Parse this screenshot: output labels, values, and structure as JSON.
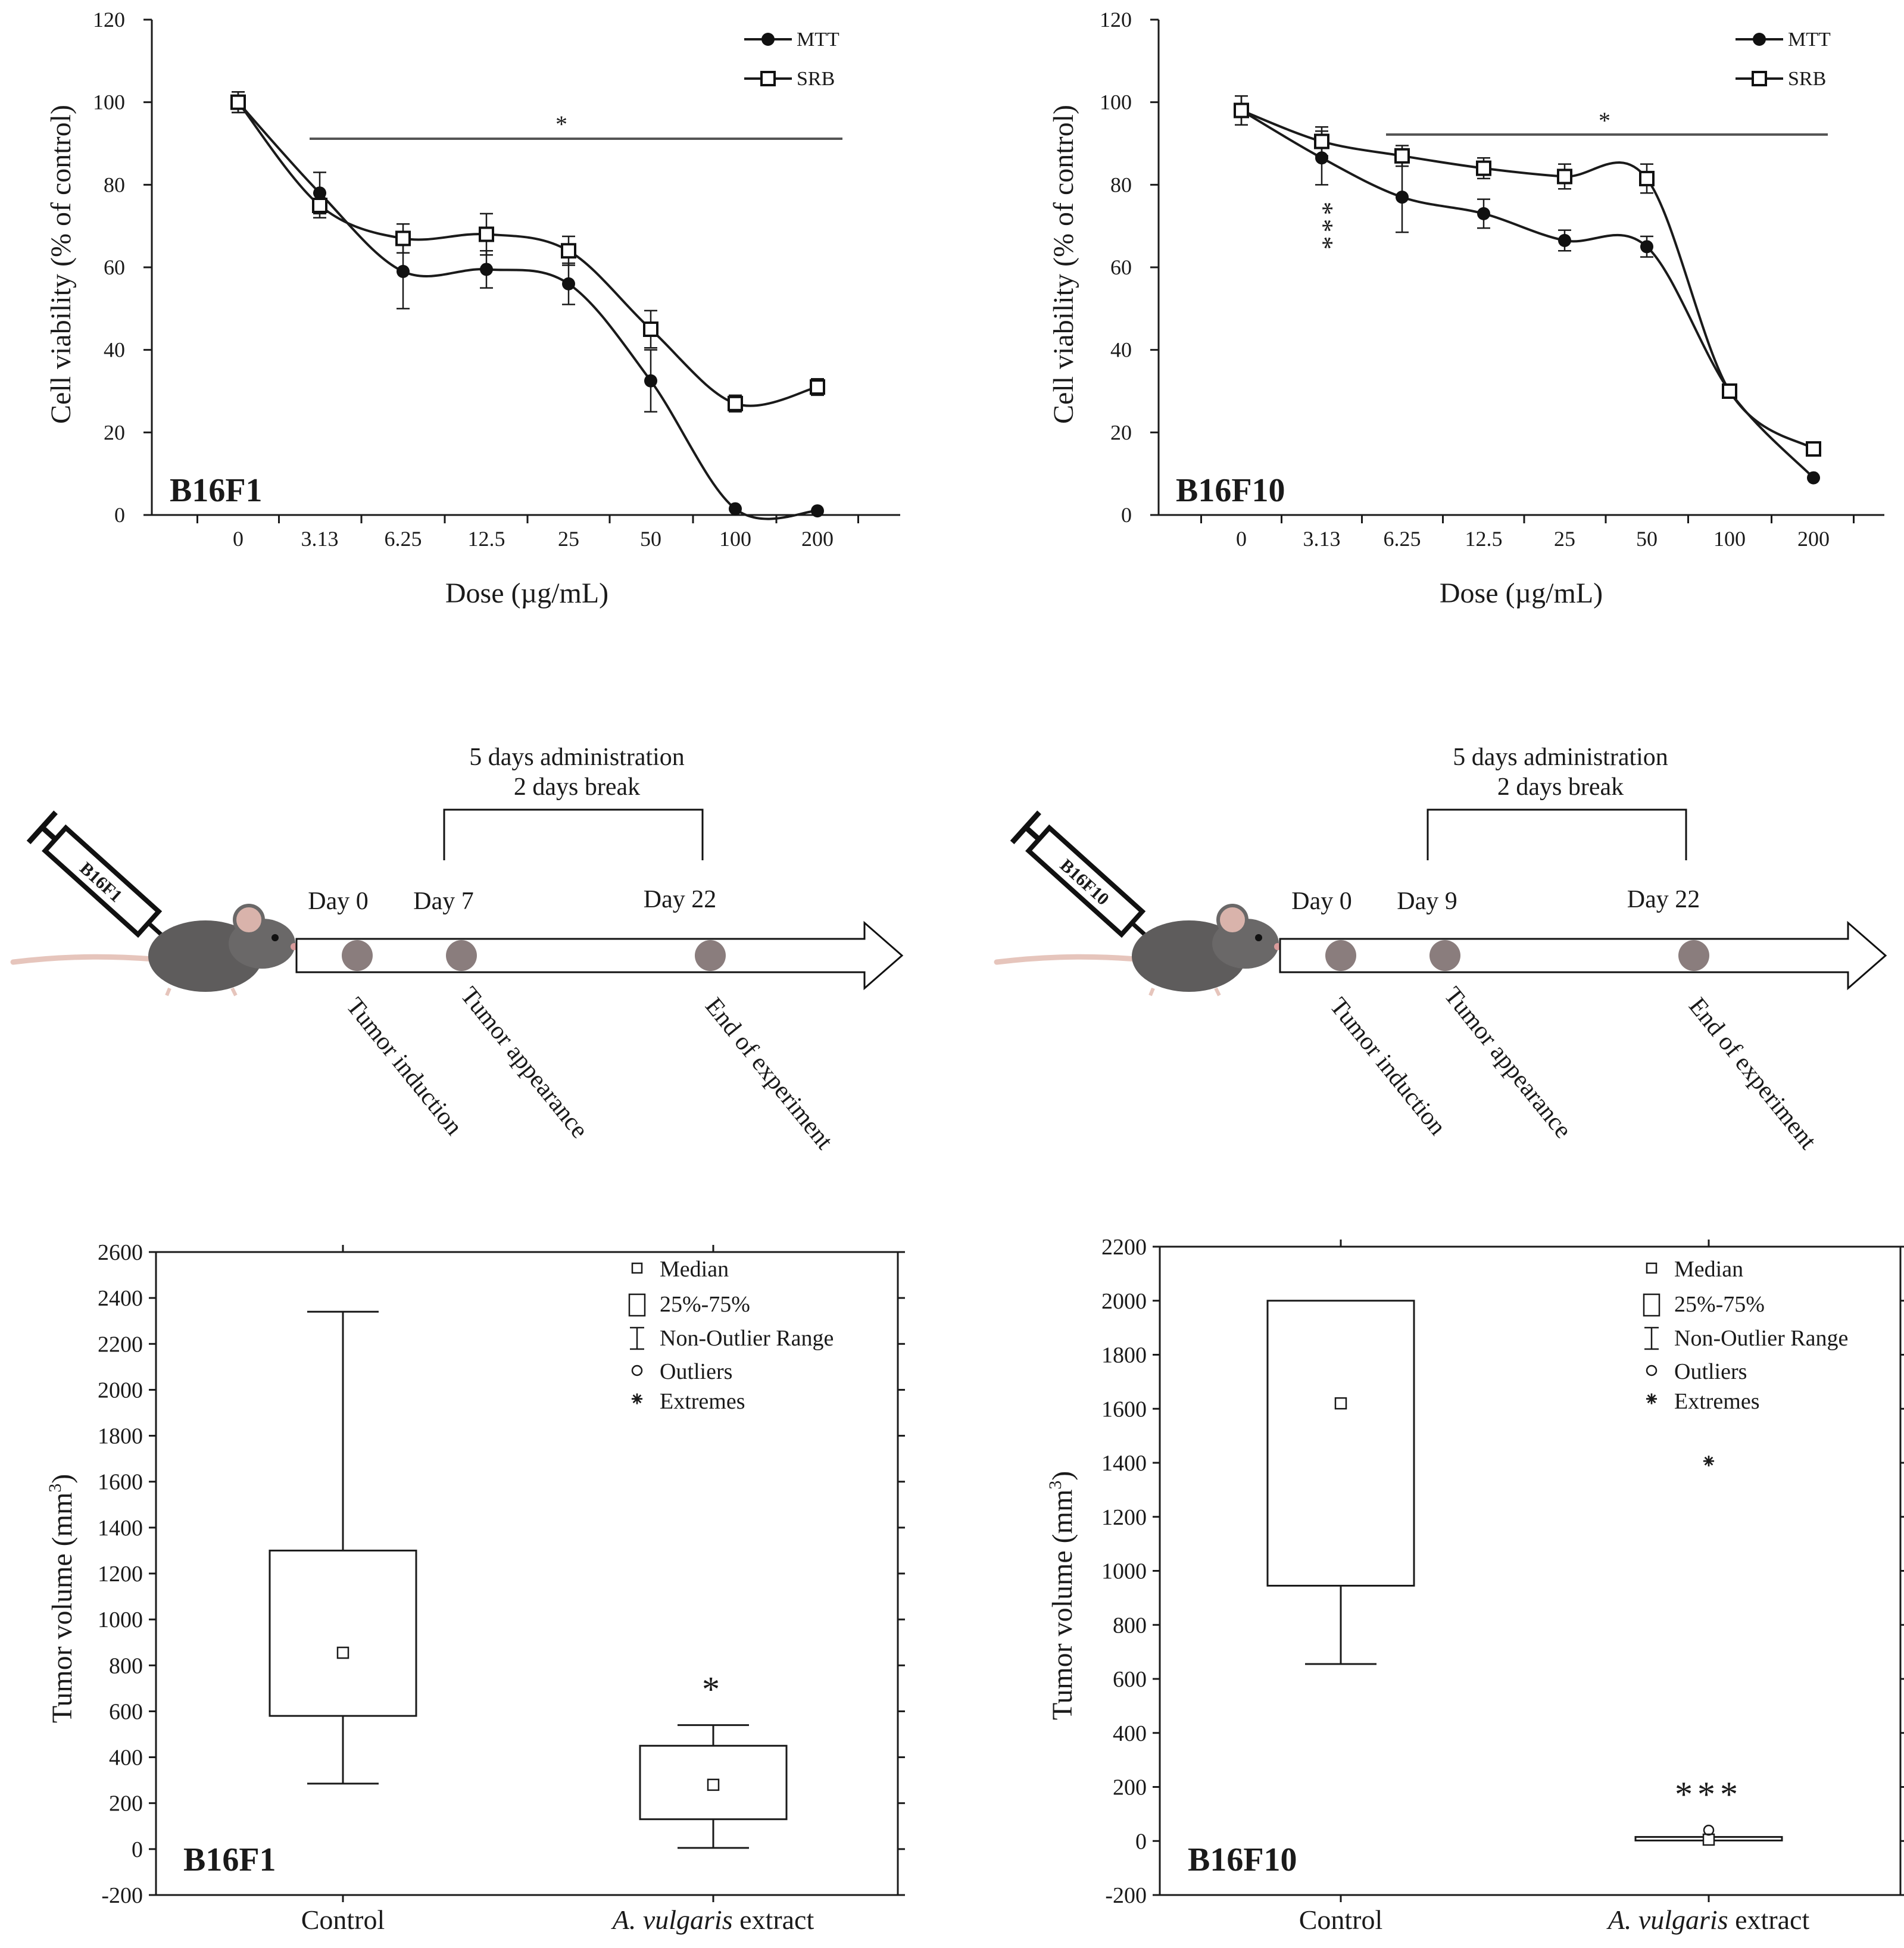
{
  "colors": {
    "ink": "#1a1a1a",
    "marker": "#8a7d7d",
    "mouse": "#5e5c5c",
    "tail": "#e6c5bc"
  },
  "line_charts": [
    {
      "cell_line": "B16F1",
      "xlabel": "Dose (µg/mL)",
      "ylabel": "Cell viability (% of control)",
      "significance": "*"
    },
    {
      "cell_line": "B16F10",
      "xlabel": "Dose (µg/mL)",
      "ylabel": "Cell viability (% of control)",
      "significance": "*",
      "extra_annotation": "***"
    }
  ],
  "timelines": [
    {
      "syringe_label": "B16F1",
      "bracket_line1": "5 days administration",
      "bracket_line2": "2 days break",
      "days": [
        "Day 0",
        "Day 7",
        "Day 22"
      ],
      "events": [
        "Tumor induction",
        "Tumor appearance",
        "End of experiment"
      ]
    },
    {
      "syringe_label": "B16F10",
      "bracket_line1": "5 days administration",
      "bracket_line2": "2 days break",
      "days": [
        "Day 0",
        "Day 9",
        "Day 22"
      ],
      "events": [
        "Tumor induction",
        "Tumor appearance",
        "End of experiment"
      ]
    }
  ],
  "box_charts": [
    {
      "cell_line": "B16F1",
      "significance": "*",
      "legend": [
        "Median",
        "25%-75%",
        "Non-Outlier Range",
        "Outliers",
        "Extremes"
      ]
    },
    {
      "cell_line": "B16F10",
      "significance": "***",
      "legend": [
        "Median",
        "25%-75%",
        "Non-Outlier Range",
        "Outliers",
        "Extremes"
      ]
    }
  ],
  "chart_data": [
    {
      "type": "line",
      "title": "B16F1",
      "xlabel": "Dose (µg/mL)",
      "ylabel": "Cell viability (% of control)",
      "categories": [
        "0",
        "3.13",
        "6.25",
        "12.5",
        "25",
        "50",
        "100",
        "200"
      ],
      "ylim": [
        0,
        120
      ],
      "yticks": [
        0,
        20,
        40,
        60,
        80,
        100,
        120
      ],
      "series": [
        {
          "name": "MTT",
          "marker": "filled-circle",
          "values": [
            100,
            78,
            59,
            59.5,
            56,
            32.5,
            1.5,
            1
          ],
          "errors": [
            2.5,
            5,
            9,
            4.5,
            5,
            7.5,
            0,
            0
          ]
        },
        {
          "name": "SRB",
          "marker": "open-square",
          "values": [
            100,
            75,
            67,
            68,
            64,
            45,
            27,
            31
          ],
          "errors": [
            2.5,
            3,
            3.5,
            5,
            3.5,
            4.5,
            2,
            2
          ]
        }
      ],
      "significance_bar": {
        "from": "3.13",
        "to": "200",
        "label": "*"
      },
      "legend_position": "top-right"
    },
    {
      "type": "line",
      "title": "B16F10",
      "xlabel": "Dose (µg/mL)",
      "ylabel": "Cell viability (% of control)",
      "categories": [
        "0",
        "3.13",
        "6.25",
        "12.5",
        "25",
        "50",
        "100",
        "200"
      ],
      "ylim": [
        0,
        120
      ],
      "yticks": [
        0,
        20,
        40,
        60,
        80,
        100,
        120
      ],
      "series": [
        {
          "name": "MTT",
          "marker": "filled-circle",
          "values": [
            98,
            86.5,
            77,
            73,
            66.5,
            65,
            30,
            9
          ],
          "errors": [
            3.5,
            6.5,
            8.5,
            3.5,
            2.5,
            2.5,
            0,
            0
          ]
        },
        {
          "name": "SRB",
          "marker": "open-square",
          "values": [
            98,
            90.5,
            87,
            84,
            82,
            81.5,
            30,
            16
          ],
          "errors": [
            3.5,
            3.5,
            2.5,
            2.5,
            3,
            3.5,
            0,
            0
          ]
        }
      ],
      "significance_bar": {
        "from": "6.25",
        "to": "200",
        "label": "*"
      },
      "annotation": {
        "at": "3.13",
        "label": "***"
      },
      "legend_position": "top-right"
    },
    {
      "type": "box",
      "title": "B16F1",
      "ylabel": "Tumor volume (mm³)",
      "ylim": [
        -200,
        2600
      ],
      "yticks": [
        -200,
        0,
        200,
        400,
        600,
        800,
        1000,
        1200,
        1400,
        1600,
        1800,
        2000,
        2200,
        2400,
        2600
      ],
      "categories": [
        "Control",
        "A. vulgaris extract"
      ],
      "boxes": [
        {
          "name": "Control",
          "min": 285,
          "q1": 580,
          "median": 855,
          "q3": 1300,
          "max": 2340
        },
        {
          "name": "A. vulgaris extract",
          "min": 5,
          "q1": 130,
          "median": 280,
          "q3": 450,
          "max": 540,
          "significance": "*"
        }
      ]
    },
    {
      "type": "box",
      "title": "B16F10",
      "ylabel": "Tumor volume (mm³)",
      "ylim": [
        -200,
        2200
      ],
      "yticks": [
        -200,
        0,
        200,
        400,
        600,
        800,
        1000,
        1200,
        1400,
        1600,
        1800,
        2000,
        2200
      ],
      "categories": [
        "Control",
        "A. vulgaris extract"
      ],
      "boxes": [
        {
          "name": "Control",
          "min": 655,
          "q1": 945,
          "median": 1620,
          "q3": 2000,
          "max": 2000
        },
        {
          "name": "A. vulgaris extract",
          "min": 5,
          "q1": 5,
          "median": 5,
          "q3": 15,
          "max": 15,
          "outliers": [
            40
          ],
          "extremes": [
            1405
          ],
          "significance": "***"
        }
      ]
    }
  ]
}
